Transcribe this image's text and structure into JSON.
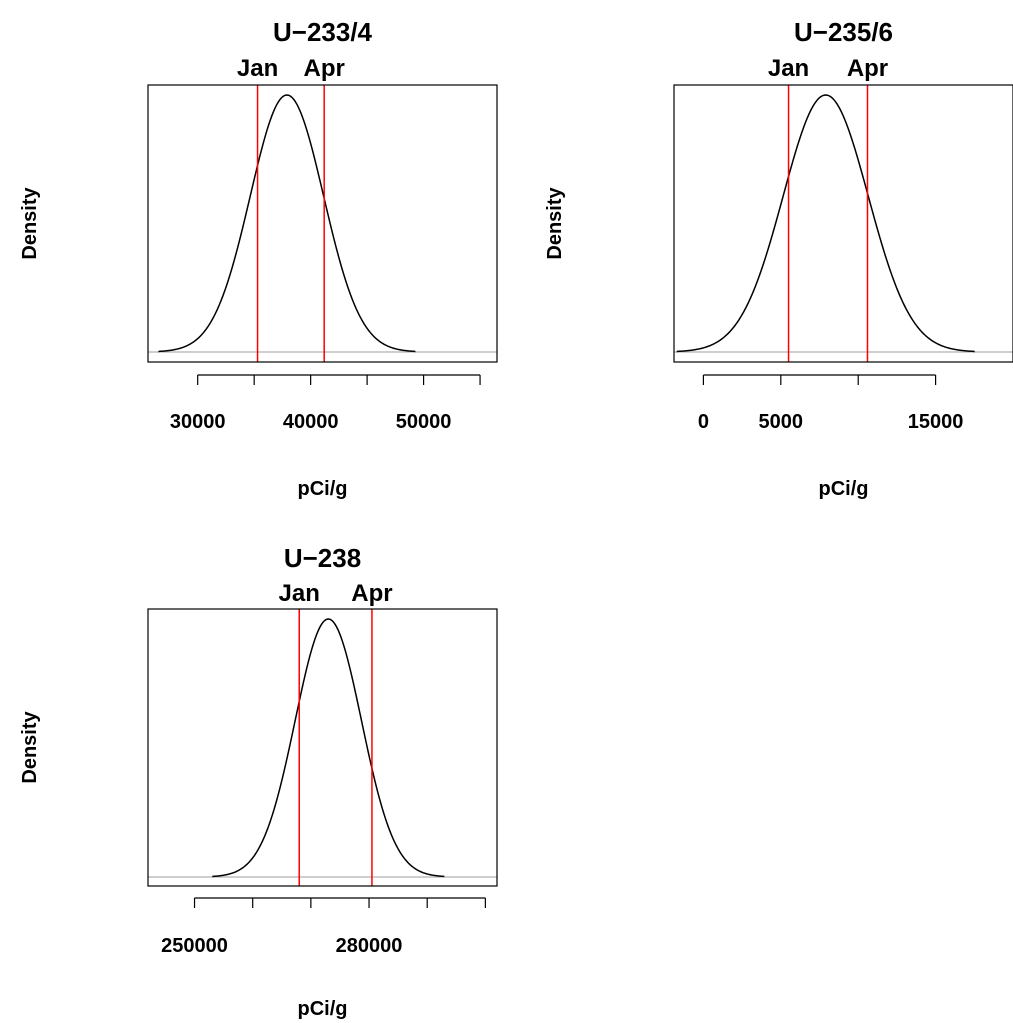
{
  "chart_data": [
    {
      "type": "line",
      "title": "U−233/4",
      "xlabel": "pCi/g",
      "ylabel": "Density",
      "xlim": [
        25600,
        56500
      ],
      "ticks": [
        30000,
        35000,
        40000,
        45000,
        50000,
        55000
      ],
      "tick_labels": [
        "30000",
        "",
        "40000",
        "",
        "50000",
        ""
      ],
      "grid": false,
      "legend": "none",
      "distribution": {
        "mean": 37900,
        "sd": 3250
      },
      "markers": [
        {
          "label": "Jan",
          "x": 35300,
          "color": "#ff0000"
        },
        {
          "label": "Apr",
          "x": 41200,
          "color": "#ff0000"
        }
      ],
      "colors": {
        "curve": "#000000",
        "baseline": "#bebebe"
      }
    },
    {
      "type": "line",
      "title": "U−235/6",
      "xlabel": "pCi/g",
      "ylabel": "Density",
      "xlim": [
        -1900,
        20000
      ],
      "ticks": [
        0,
        5000,
        10000,
        15000
      ],
      "tick_labels": [
        "0",
        "5000",
        "",
        "15000"
      ],
      "grid": false,
      "legend": "none",
      "distribution": {
        "mean": 7900,
        "sd": 2750
      },
      "markers": [
        {
          "label": "Jan",
          "x": 5500,
          "color": "#ff0000"
        },
        {
          "label": "Apr",
          "x": 10600,
          "color": "#ff0000"
        }
      ],
      "colors": {
        "curve": "#000000",
        "baseline": "#bebebe"
      }
    },
    {
      "type": "line",
      "title": "U−238",
      "xlabel": "pCi/g",
      "ylabel": "Density",
      "xlim": [
        242000,
        302000
      ],
      "ticks": [
        250000,
        260000,
        270000,
        280000,
        290000,
        300000
      ],
      "tick_labels": [
        "250000",
        "",
        "",
        "280000",
        "",
        ""
      ],
      "grid": false,
      "legend": "none",
      "distribution": {
        "mean": 273000,
        "sd": 5700
      },
      "markers": [
        {
          "label": "Jan",
          "x": 268000,
          "color": "#ff0000"
        },
        {
          "label": "Apr",
          "x": 280500,
          "color": "#ff0000"
        }
      ],
      "colors": {
        "curve": "#000000",
        "baseline": "#bebebe"
      }
    }
  ]
}
